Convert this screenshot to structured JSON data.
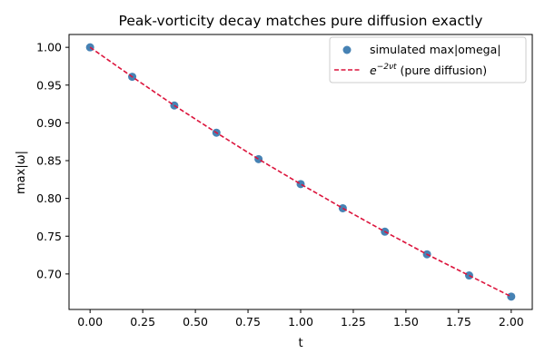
{
  "chart_data": {
    "type": "scatter",
    "title": "Peak-vorticity decay matches pure diffusion exactly",
    "xlabel": "t",
    "ylabel": "max|ω|",
    "xlim": [
      -0.1,
      2.1
    ],
    "ylim": [
      0.653,
      1.017
    ],
    "xticks": [
      "0.00",
      "0.25",
      "0.50",
      "0.75",
      "1.00",
      "1.25",
      "1.50",
      "1.75",
      "2.00"
    ],
    "yticks": [
      "0.70",
      "0.75",
      "0.80",
      "0.85",
      "0.90",
      "0.95",
      "1.00"
    ],
    "grid": false,
    "legend_position": "top-right",
    "series": [
      {
        "name": "simulated max|omega|",
        "kind": "markers",
        "color": "#4682b4",
        "x": [
          0.0,
          0.2,
          0.4,
          0.6,
          0.8,
          1.0,
          1.2,
          1.4,
          1.6,
          1.8,
          2.0
        ],
        "y": [
          1.0,
          0.961,
          0.923,
          0.887,
          0.852,
          0.819,
          0.787,
          0.756,
          0.726,
          0.698,
          0.67
        ]
      },
      {
        "name": "e^{−2νt} (pure diffusion)",
        "kind": "dashed-line",
        "color": "#dc143c",
        "x": [
          0.0,
          0.2,
          0.4,
          0.6,
          0.8,
          1.0,
          1.2,
          1.4,
          1.6,
          1.8,
          2.0
        ],
        "y": [
          1.0,
          0.961,
          0.923,
          0.887,
          0.852,
          0.819,
          0.787,
          0.756,
          0.726,
          0.698,
          0.67
        ]
      }
    ],
    "legend": {
      "markers_label": "simulated max|omega|",
      "line_label_base": "e",
      "line_label_exponent": "−2νt",
      "line_label_rest": " (pure diffusion)"
    }
  }
}
